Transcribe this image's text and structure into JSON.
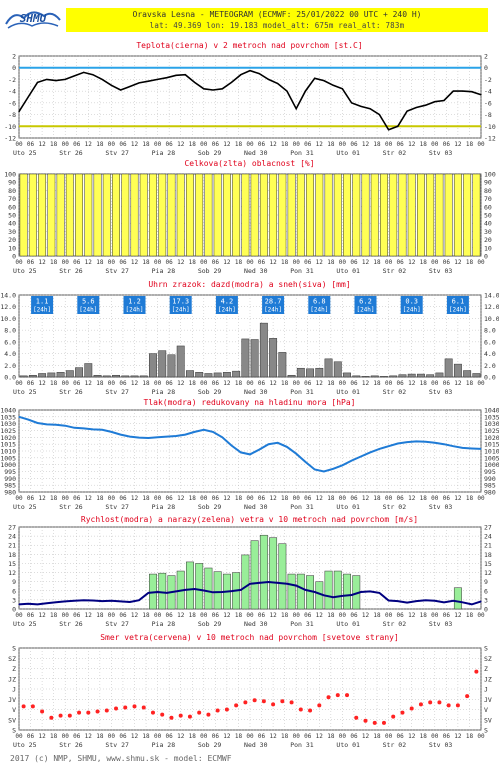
{
  "header": {
    "line1": "Oravska Lesna - METEOGRAM (ECMWF: 25/01/2022 00 UTC + 240 H)",
    "line2": "lat: 49.369  lon: 19.183  model_alt: 675m  real_alt: 783m",
    "logo_text": "SHMU"
  },
  "colors": {
    "header_bg": "#ffff00",
    "title_red": "#e0001b",
    "temp_line": "#000000",
    "cloud_bar": "#ffff55",
    "precip_bar": "#888888",
    "precip_label_bg": "#1f7bd6",
    "pressure_line": "#1f7bd6",
    "wind_line": "#000080",
    "gust_bar": "#99ee99",
    "dir_dot": "#ff2222",
    "zero_line": "#2aa3e8",
    "minus10_line": "#c8c800"
  },
  "time_axis": {
    "hours_pattern": [
      "00",
      "06",
      "12",
      "18"
    ],
    "days": [
      "Uto 25",
      "Str 26",
      "Stv 27",
      "Pia 28",
      "Sob 29",
      "Ned 30",
      "Pon 31",
      "Uto 01",
      "Str 02",
      "Stv 03"
    ],
    "last_tick": "00"
  },
  "chart_data": [
    {
      "type": "line",
      "title": "Teplota(cierna) v 2 metroch nad povrchom [st.C]",
      "x_step_hours": 6,
      "ylim": [
        -12,
        2
      ],
      "yticks": [
        2,
        0,
        -2,
        -4,
        -6,
        -8,
        -10,
        -12
      ],
      "ref_lines": [
        0,
        -10
      ],
      "series": [
        {
          "values": [
            -7.5,
            -5,
            -2.5,
            -2,
            -2.2,
            -2,
            -1.4,
            -0.8,
            -1.2,
            -2,
            -3,
            -3.8,
            -3.2,
            -2.6,
            -2.3,
            -2,
            -1.7,
            -1.3,
            -1.2,
            -2.5,
            -3.6,
            -3.8,
            -3.6,
            -2.5,
            -1.2,
            -0.5,
            -1,
            -2,
            -2.7,
            -4,
            -7,
            -4,
            -1.8,
            -2.2,
            -3,
            -3.6,
            -6,
            -6.6,
            -7,
            -8,
            -10.6,
            -10,
            -7.4,
            -6.8,
            -6.4,
            -5.8,
            -5.6,
            -4,
            -4,
            -4.1,
            -4.6
          ]
        }
      ]
    },
    {
      "type": "bar",
      "title": "Celkova(zlta) oblacnost [%]",
      "x_step_hours": 3,
      "ylim": [
        0,
        100
      ],
      "yticks": [
        100,
        90,
        80,
        70,
        60,
        50,
        40,
        30,
        20,
        10,
        0
      ],
      "series": [
        {
          "values": [
            100,
            100,
            100,
            100,
            100,
            100,
            100,
            100,
            100,
            100,
            100,
            100,
            100,
            100,
            100,
            100,
            100,
            100,
            100,
            100,
            100,
            100,
            100,
            100,
            100,
            100,
            100,
            100,
            100,
            100,
            100,
            100,
            100,
            100,
            100,
            100,
            100,
            100,
            100,
            100,
            100,
            100,
            100,
            100,
            100,
            100,
            100,
            100,
            100,
            100,
            100,
            100,
            100,
            100,
            100,
            100,
            100,
            100,
            100,
            100,
            100,
            100,
            100,
            100,
            100,
            100,
            100,
            100,
            100,
            100,
            100,
            100,
            100,
            100,
            100,
            100,
            100,
            100,
            100,
            100
          ]
        }
      ],
      "values_by_6h": [
        100,
        100,
        100,
        100,
        100,
        100,
        100,
        100,
        100,
        100,
        100,
        100,
        100,
        100,
        100,
        100,
        100,
        100,
        100,
        100,
        100,
        100,
        100,
        100,
        100,
        100,
        100,
        100,
        100,
        100,
        100,
        100,
        100,
        100,
        100,
        100,
        100,
        100,
        100,
        100,
        100,
        100,
        100,
        100,
        100,
        100,
        100,
        100,
        100,
        100
      ]
    },
    {
      "type": "bar",
      "title": "Uhrn zrazok: dazd(modra) a sneh(siva) [mm]",
      "x_step_hours": 6,
      "ylim": [
        0,
        14
      ],
      "yticks": [
        14.0,
        12.0,
        10.0,
        8.0,
        6.0,
        4.0,
        2.0,
        0.0
      ],
      "daily_totals": [
        "1.1",
        "5.6",
        "1.2",
        "17.3",
        "4.2",
        "28.7",
        "6.8",
        "6.2",
        "0.3",
        "6.1"
      ],
      "daily_label_suffix": "[24h]",
      "series": [
        {
          "values": [
            0.2,
            0.3,
            0.6,
            0.7,
            0.8,
            1.1,
            1.6,
            2.3,
            0.3,
            0.2,
            0.3,
            0.2,
            0.2,
            0.2,
            4.0,
            4.5,
            3.8,
            5.3,
            1.1,
            0.8,
            0.6,
            0.7,
            0.8,
            1.0,
            6.5,
            6.4,
            9.2,
            6.6,
            4.2,
            0.3,
            1.5,
            1.4,
            1.5,
            3.1,
            2.6,
            0.7,
            0.2,
            0.1,
            0.2,
            0.1,
            0.2,
            0.4,
            0.5,
            0.5,
            0.4,
            0.7,
            3.1,
            2.2,
            1.1,
            0.6
          ]
        }
      ]
    },
    {
      "type": "line",
      "title": "Tlak(modra) redukovany na hladinu mora [hPa]",
      "x_step_hours": 6,
      "ylim": [
        980,
        1040
      ],
      "yticks": [
        1040,
        1035,
        1030,
        1025,
        1020,
        1015,
        1010,
        1005,
        1000,
        995,
        990,
        985,
        980
      ],
      "series": [
        {
          "values": [
            1035,
            1033,
            1030.5,
            1029.5,
            1029.2,
            1028.5,
            1027,
            1026.5,
            1025.8,
            1025.5,
            1024,
            1022,
            1020.5,
            1019.8,
            1019.5,
            1020,
            1020.5,
            1021,
            1022,
            1024,
            1025.5,
            1024,
            1020,
            1014,
            1009,
            1007.5,
            1011,
            1015,
            1016,
            1013,
            1008,
            1002,
            996.5,
            995,
            997,
            999.5,
            1003,
            1006,
            1009,
            1011.5,
            1013.5,
            1015.5,
            1016.5,
            1017,
            1016.8,
            1016,
            1015,
            1013.5,
            1012.3,
            1011.8,
            1011.5
          ]
        }
      ]
    },
    {
      "type": "bar",
      "title": "Rychlost(modra) a narazy(zelena) vetra v 10 metroch nad povrchom [m/s]",
      "x_step_hours": 6,
      "ylim": [
        0,
        27
      ],
      "yticks": [
        27,
        24,
        21,
        18,
        15,
        12,
        9,
        6,
        3,
        0
      ],
      "series": [
        {
          "values": [
            1.5,
            1.7,
            1.5,
            1.9,
            2.2,
            2.5,
            2.7,
            2.9,
            2.8,
            2.6,
            2.7,
            2.5,
            2.3,
            2.9,
            5.3,
            5.6,
            5.3,
            5.8,
            6.3,
            6.6,
            6.1,
            5.5,
            5.6,
            5.9,
            6.3,
            8.3,
            8.6,
            8.9,
            8.6,
            8.3,
            7.7,
            6.3,
            5.6,
            4.5,
            3.9,
            4.3,
            4.6,
            5.6,
            5.8,
            5.3,
            2.8,
            2.6,
            2.1,
            2.6,
            2.9,
            2.7,
            2.2,
            2.7,
            2.2,
            1.5,
            2.5
          ]
        },
        {
          "values": [
            0,
            0,
            0,
            0,
            0,
            0,
            0,
            0,
            0,
            0,
            0,
            0,
            0,
            0,
            11.5,
            11.8,
            11.0,
            12.5,
            15.5,
            15.0,
            13.5,
            12.3,
            11.5,
            12.0,
            17.8,
            22.5,
            24.3,
            23.5,
            21.5,
            11.5,
            11.5,
            11.0,
            9.0,
            12.5,
            12.5,
            11.5,
            11.0,
            0,
            0,
            0,
            0,
            0,
            0,
            0,
            0,
            0,
            0,
            7.0,
            0,
            0
          ]
        }
      ]
    },
    {
      "type": "scatter",
      "title": "Smer vetra(cervena) v 10 metroch nad povrchom [svetove strany]",
      "x_step_hours": 6,
      "yticks": [
        "S",
        "SV",
        "V",
        "JV",
        "J",
        "JZ",
        "Z",
        "SZ",
        "S"
      ],
      "series": [
        {
          "values": [
            5.7,
            5.7,
            6.2,
            6.8,
            6.6,
            6.6,
            6.3,
            6.3,
            6.2,
            6.1,
            5.9,
            5.8,
            5.7,
            5.8,
            6.3,
            6.5,
            6.8,
            6.6,
            6.7,
            6.3,
            6.5,
            6.1,
            6.0,
            5.6,
            5.3,
            5.1,
            5.2,
            5.5,
            5.2,
            5.3,
            6.0,
            6.1,
            5.6,
            4.8,
            4.6,
            4.6,
            6.8,
            7.1,
            7.3,
            7.3,
            6.7,
            6.3,
            5.9,
            5.5,
            5.3,
            5.3,
            5.6,
            5.6,
            4.7,
            2.3
          ]
        }
      ]
    }
  ],
  "footer": "2017 (c) NMP, SHMU, www.shmu.sk - model: ECMWF"
}
